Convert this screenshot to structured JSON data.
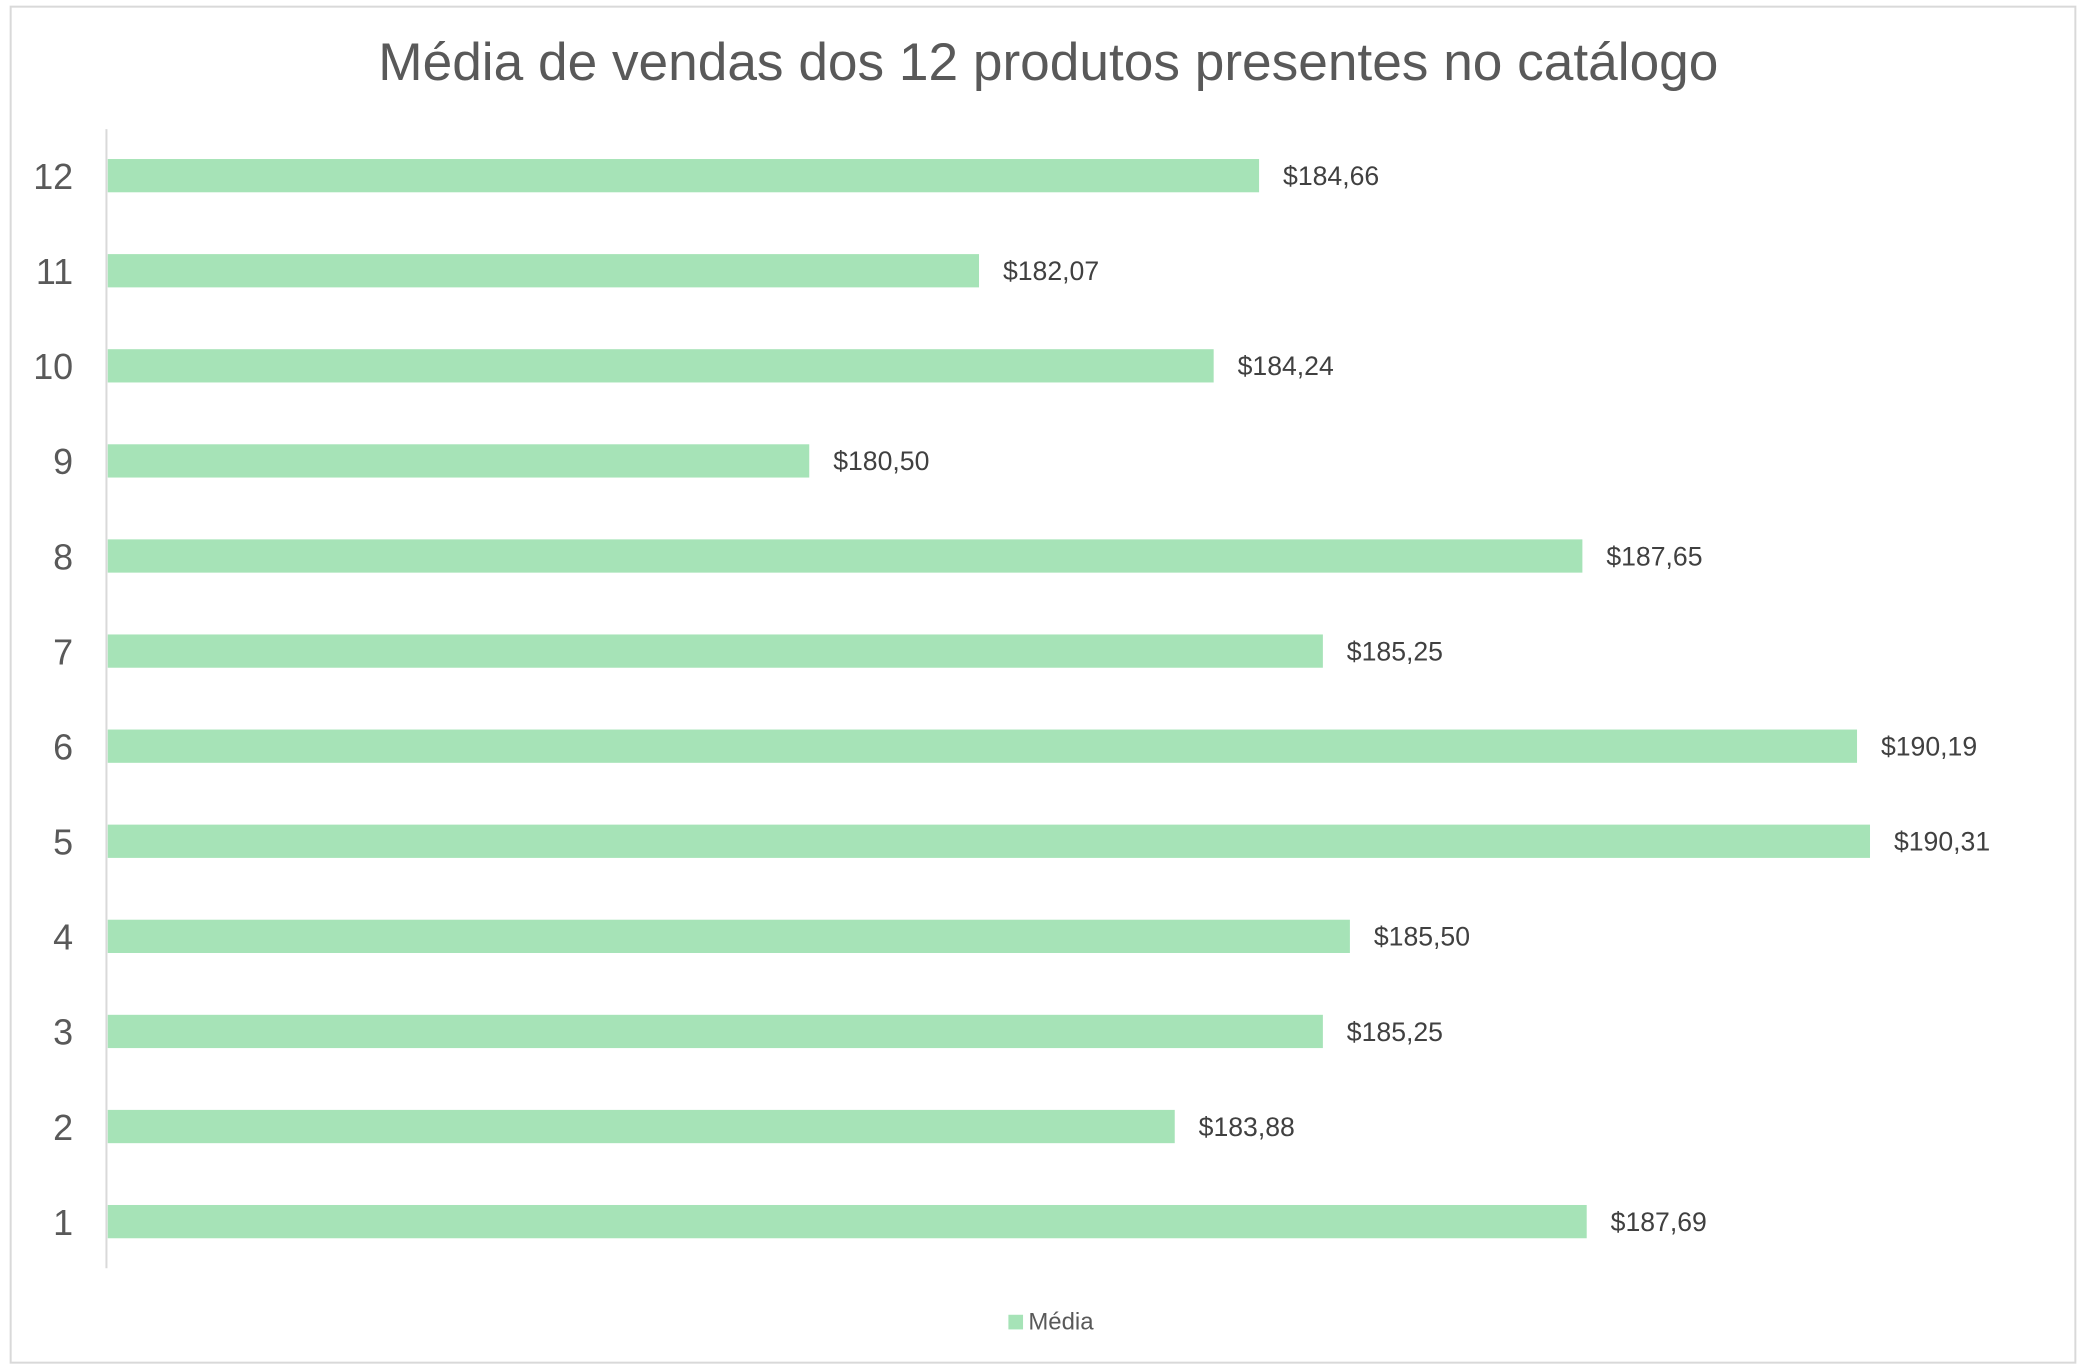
{
  "chart_data": {
    "type": "bar",
    "orientation": "horizontal",
    "title": "Média de vendas dos 12 produtos presentes no catálogo",
    "xlabel": "",
    "ylabel": "",
    "categories": [
      "1",
      "2",
      "3",
      "4",
      "5",
      "6",
      "7",
      "8",
      "9",
      "10",
      "11",
      "12"
    ],
    "series": [
      {
        "name": "Média",
        "values": [
          187.69,
          183.88,
          185.25,
          185.5,
          190.31,
          190.19,
          185.25,
          187.65,
          180.5,
          184.24,
          182.07,
          184.66
        ],
        "labels": [
          "$187,69",
          "$183,88",
          "$185,25",
          "$185,50",
          "$190,31",
          "$190,19",
          "$185,25",
          "$187,65",
          "$180,50",
          "$184,24",
          "$182,07",
          "$184,66"
        ],
        "color": "#A6E3B7"
      }
    ],
    "xlim": [
      174,
      192
    ],
    "grid": false,
    "value_axis_visible": false,
    "legend": "bottom",
    "colors": {
      "title": "#595959",
      "tick": "#595959",
      "data_label": "#404040",
      "axis": "#D9D9D9",
      "border": "#D9D9D9"
    }
  }
}
